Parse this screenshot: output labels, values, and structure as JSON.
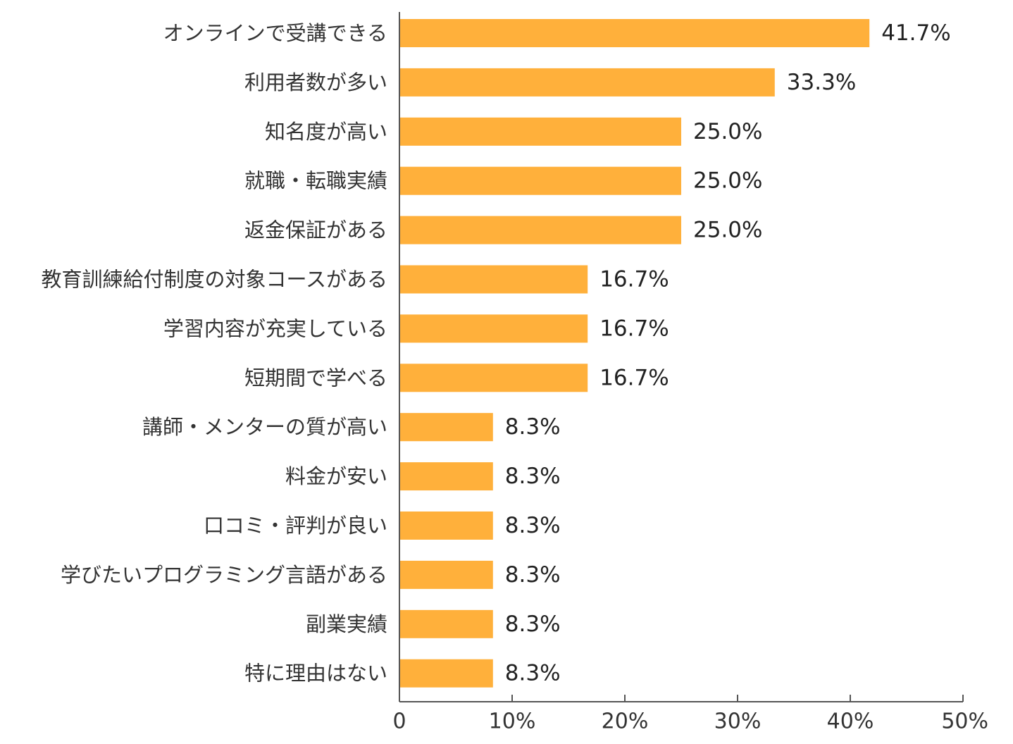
{
  "chart_data": {
    "type": "bar",
    "orientation": "horizontal",
    "categories": [
      "オンラインで受講できる",
      "利用者数が多い",
      "知名度が高い",
      "就職・転職実績",
      "返金保証がある",
      "教育訓練給付制度の対象コースがある",
      "学習内容が充実している",
      "短期間で学べる",
      "講師・メンターの質が高い",
      "料金が安い",
      "口コミ・評判が良い",
      "学びたいプログラミング言語がある",
      "副業実績",
      "特に理由はない"
    ],
    "values": [
      41.7,
      33.3,
      25.0,
      25.0,
      25.0,
      16.7,
      16.7,
      16.7,
      8.3,
      8.3,
      8.3,
      8.3,
      8.3,
      8.3
    ],
    "value_labels": [
      "41.7%",
      "33.3%",
      "25.0%",
      "25.0%",
      "25.0%",
      "16.7%",
      "16.7%",
      "16.7%",
      "8.3%",
      "8.3%",
      "8.3%",
      "8.3%",
      "8.3%",
      "8.3%"
    ],
    "xlim": [
      0,
      50
    ],
    "x_ticks": [
      0,
      10,
      20,
      30,
      40,
      50
    ],
    "x_tick_labels": [
      "0",
      "10%",
      "20%",
      "30%",
      "40%",
      "50%"
    ],
    "bar_color": "#FFB03B",
    "axis_color": "#555555",
    "grid": false,
    "title": "",
    "xlabel": "",
    "ylabel": ""
  }
}
